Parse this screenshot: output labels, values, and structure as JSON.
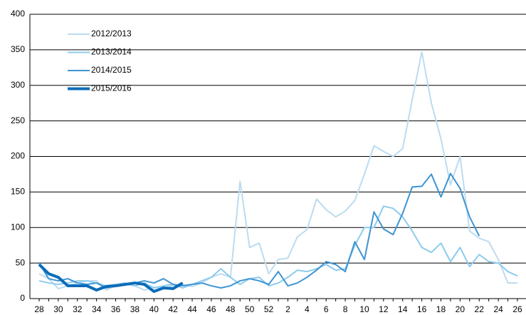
{
  "chart_data": {
    "type": "line",
    "categories": [
      "28",
      null,
      "30",
      null,
      "32",
      null,
      "34",
      null,
      "36",
      null,
      "38",
      null,
      "40",
      null,
      "42",
      null,
      "44",
      null,
      "46",
      null,
      "48",
      null,
      "50",
      null,
      "52",
      null,
      "2",
      null,
      "4",
      null,
      "6",
      null,
      "8",
      null,
      "10",
      null,
      "12",
      null,
      "14",
      null,
      "16",
      null,
      "18",
      null,
      "20",
      null,
      "22",
      null,
      "24",
      null,
      "26"
    ],
    "series": [
      {
        "name": "2012/2013",
        "color": "#bcdcf0",
        "values": [
          35,
          28,
          14,
          18,
          22,
          25,
          25,
          12,
          18,
          20,
          18,
          12,
          16,
          15,
          18,
          20,
          17,
          22,
          30,
          35,
          30,
          165,
          72,
          78,
          35,
          55,
          57,
          87,
          97,
          140,
          125,
          115,
          123,
          138,
          175,
          215,
          207,
          200,
          211,
          280,
          347,
          275,
          225,
          160,
          200,
          95,
          85,
          80,
          55,
          22,
          22
        ]
      },
      {
        "name": "2013/2014",
        "color": "#8ccbee",
        "values": [
          25,
          22,
          20,
          22,
          25,
          25,
          22,
          18,
          20,
          22,
          18,
          22,
          15,
          18,
          20,
          15,
          20,
          25,
          30,
          42,
          30,
          20,
          28,
          30,
          18,
          22,
          30,
          40,
          38,
          42,
          48,
          40,
          42,
          75,
          100,
          100,
          130,
          127,
          115,
          95,
          72,
          65,
          78,
          52,
          72,
          45,
          62,
          52,
          50,
          38,
          32
        ]
      },
      {
        "name": "2014/2015",
        "color": "#3d94d3",
        "values": [
          50,
          28,
          25,
          28,
          22,
          20,
          22,
          15,
          18,
          20,
          22,
          25,
          22,
          28,
          20,
          18,
          20,
          22,
          18,
          15,
          18,
          25,
          28,
          25,
          20,
          38,
          18,
          22,
          30,
          40,
          52,
          48,
          38,
          80,
          55,
          122,
          98,
          90,
          120,
          157,
          158,
          175,
          143,
          176,
          155,
          115,
          88,
          null,
          null,
          null,
          null
        ]
      },
      {
        "name": "2015/2016",
        "color": "#0b6cb8",
        "values": [
          48,
          35,
          30,
          18,
          18,
          18,
          12,
          17,
          18,
          20,
          22,
          20,
          10,
          15,
          14,
          22,
          null,
          null,
          null,
          null,
          null,
          null,
          null,
          null,
          null,
          null,
          null,
          null,
          null,
          null,
          null,
          null,
          null,
          null,
          null,
          null,
          null,
          null,
          null,
          null,
          null,
          null,
          null,
          null,
          null,
          null,
          null,
          null,
          null,
          null,
          null
        ]
      }
    ],
    "ylim": [
      0,
      400
    ],
    "yticks": [
      0,
      50,
      100,
      150,
      200,
      250,
      300,
      350,
      400
    ],
    "grid": true,
    "legend": "upper left"
  }
}
